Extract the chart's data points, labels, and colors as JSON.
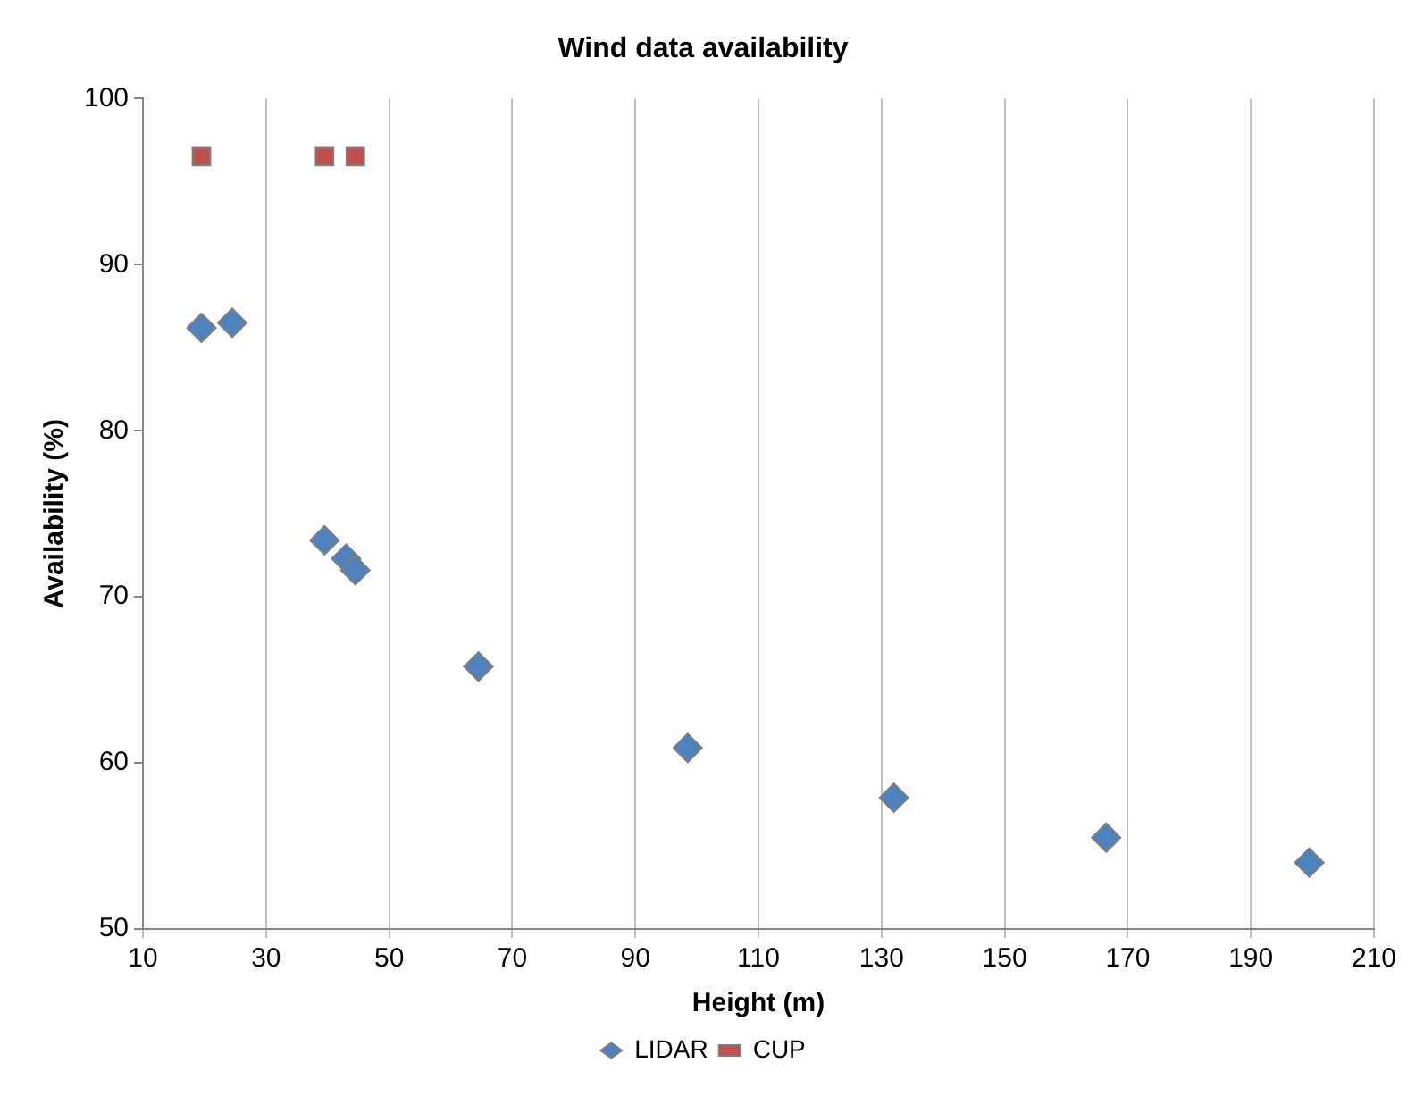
{
  "chart_data": {
    "type": "scatter",
    "title": "Wind data availability",
    "xlabel": "Height (m)",
    "ylabel": "Availability (%)",
    "xlim": [
      10,
      210
    ],
    "xticks": [
      10,
      30,
      50,
      70,
      90,
      110,
      130,
      150,
      170,
      190,
      210
    ],
    "ylim": [
      50,
      100
    ],
    "yticks": [
      50,
      60,
      70,
      80,
      90,
      100
    ],
    "grid": "x",
    "legend": "bottom",
    "series": [
      {
        "name": "LIDAR",
        "color": "#4f81bd",
        "marker": "diamond",
        "x": [
          19.5,
          24.5,
          39.5,
          43,
          44.5,
          64.5,
          98.5,
          132,
          166.5,
          199.5
        ],
        "values": [
          86.2,
          86.5,
          73.4,
          72.3,
          71.6,
          65.8,
          60.9,
          57.9,
          55.5,
          54.0
        ]
      },
      {
        "name": "CUP",
        "color": "#c0504d",
        "marker": "square",
        "x": [
          19.5,
          39.5,
          44.5
        ],
        "values": [
          96.5,
          96.5,
          96.5
        ]
      }
    ]
  }
}
